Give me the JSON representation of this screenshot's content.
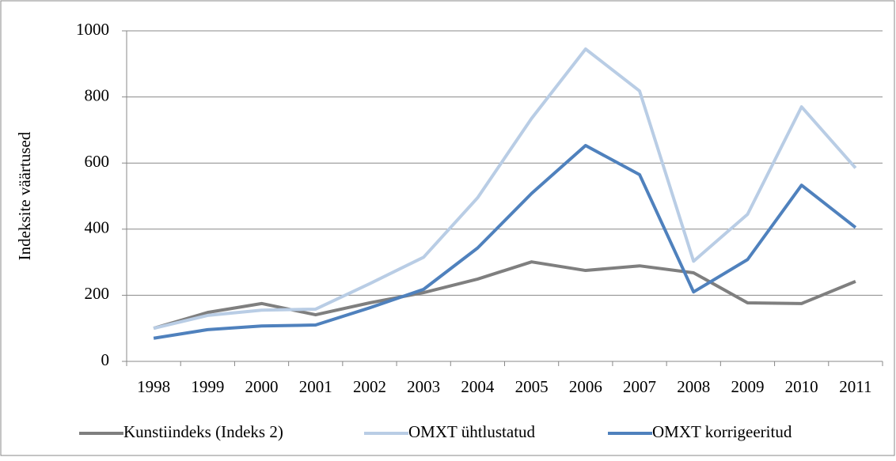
{
  "chart_data": {
    "type": "line",
    "y_label": "Indeksite väärtused",
    "categories": [
      "1998",
      "1999",
      "2000",
      "2001",
      "2002",
      "2003",
      "2004",
      "2005",
      "2006",
      "2007",
      "2008",
      "2009",
      "2010",
      "2011"
    ],
    "series": [
      {
        "name": "Kunstiindeks (Indeks 2)",
        "color": "#7f7f7f",
        "values": [
          100,
          148,
          175,
          141,
          177,
          208,
          249,
          301,
          275,
          289,
          268,
          177,
          175,
          242
        ]
      },
      {
        "name": "OMXT ühtlustatud",
        "color": "#b9cde5",
        "values": [
          100,
          139,
          155,
          158,
          235,
          315,
          495,
          735,
          945,
          818,
          303,
          445,
          770,
          585
        ]
      },
      {
        "name": "OMXT korrigeeritud",
        "color": "#4f81bd",
        "values": [
          70,
          96,
          107,
          110,
          162,
          218,
          343,
          508,
          653,
          565,
          210,
          308,
          533,
          405
        ]
      }
    ],
    "ylim": [
      0,
      1000
    ],
    "yticks": [
      0,
      200,
      400,
      600,
      800,
      1000
    ],
    "grid": true,
    "legend": "bottom"
  }
}
